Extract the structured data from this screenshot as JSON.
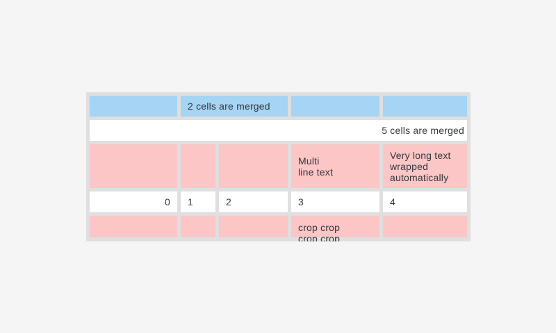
{
  "colors": {
    "screen-bg": "#f4f5f4",
    "frame": "#dfdfdf",
    "blue": "#a6d4f4",
    "pink": "#fbc6c5",
    "cell-white": "#ffffff",
    "text": "#34373b"
  },
  "table": {
    "rows": [
      {
        "cells": [
          {
            "text": ""
          },
          {
            "text": "2 cells are merged"
          },
          {
            "text": ""
          },
          {
            "text": ""
          }
        ]
      },
      {
        "cells": [
          {
            "text": "5 cells are merged"
          }
        ]
      },
      {
        "cells": [
          {
            "text": ""
          },
          {
            "text": ""
          },
          {
            "text": ""
          },
          {
            "text": "Multi\nline text"
          },
          {
            "text": "Very long text wrapped automatically"
          }
        ]
      },
      {
        "cells": [
          {
            "text": "0"
          },
          {
            "text": "1"
          },
          {
            "text": "2"
          },
          {
            "text": "3"
          },
          {
            "text": "4"
          }
        ]
      },
      {
        "cells": [
          {
            "text": ""
          },
          {
            "text": ""
          },
          {
            "text": ""
          },
          {
            "text": "crop crop\ncrop crop"
          },
          {
            "text": ""
          }
        ]
      }
    ]
  }
}
